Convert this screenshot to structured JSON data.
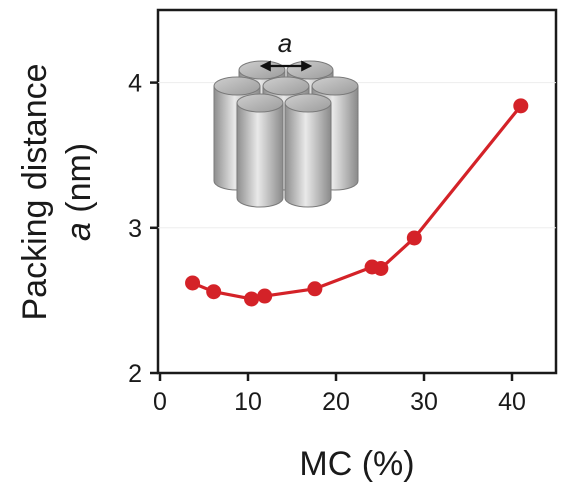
{
  "chart_data": {
    "type": "line",
    "xlabel": "MC (%)",
    "ylabel_line1": "Packing distance",
    "ylabel_var": "a",
    "ylabel_unit": " (nm)",
    "xlim": [
      0,
      45
    ],
    "ylim": [
      2,
      4.5
    ],
    "xticks": [
      0,
      10,
      20,
      30,
      40
    ],
    "yticks": [
      2,
      3,
      4
    ],
    "grid": false,
    "series": [
      {
        "color": "#d42228",
        "x": [
          3.7,
          6.1,
          10.4,
          11.9,
          17.6,
          24.1,
          25.1,
          28.9,
          41.0
        ],
        "y": [
          2.62,
          2.56,
          2.51,
          2.53,
          2.58,
          2.73,
          2.72,
          2.93,
          3.84
        ]
      }
    ],
    "inset": {
      "label": "a",
      "icon": "hexagonal-cylinder-packing"
    }
  },
  "colors": {
    "series": "#d42228",
    "axis": "#1a1a1a",
    "cylinder_dark": "#8a8a8a",
    "cylinder_light": "#e6e6e6"
  }
}
